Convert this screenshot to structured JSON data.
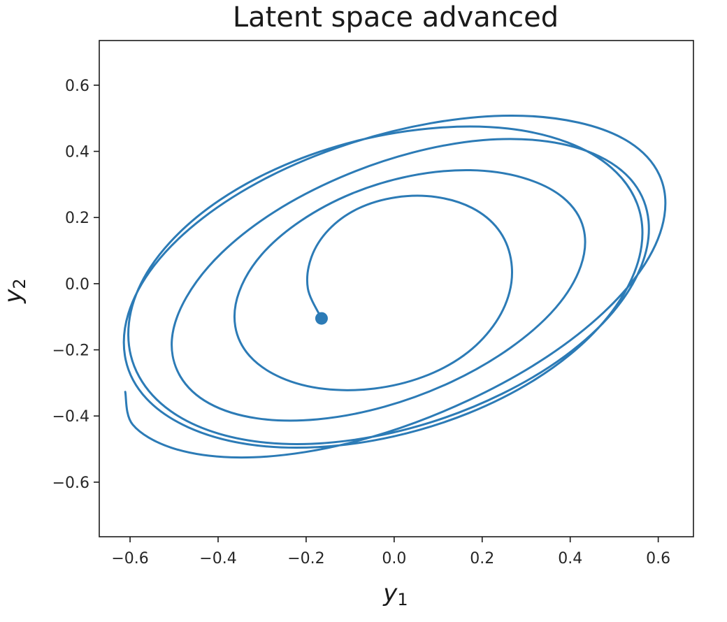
{
  "chart_data": {
    "type": "line",
    "title": "Latent space advanced",
    "xlabel": "y",
    "xlabel_subscript": "1",
    "ylabel": "y",
    "ylabel_subscript": "2",
    "xlim": [
      -0.67,
      0.68
    ],
    "ylim": [
      -0.765,
      0.735
    ],
    "xticks": [
      -0.6,
      -0.4,
      -0.2,
      0.0,
      0.2,
      0.4,
      0.6
    ],
    "xtick_labels": [
      "−0.6",
      "−0.4",
      "−0.2",
      "0.0",
      "0.2",
      "0.4",
      "0.6"
    ],
    "yticks": [
      -0.6,
      -0.4,
      -0.2,
      0.0,
      0.2,
      0.4,
      0.6
    ],
    "ytick_labels": [
      "−0.6",
      "−0.4",
      "−0.2",
      "0.0",
      "0.2",
      "0.4",
      "0.6"
    ],
    "grid": false,
    "line_color": "#2c7bb6",
    "start_marker": {
      "x": -0.165,
      "y": -0.105
    },
    "series": [
      {
        "x": [
          -0.165,
          -0.196,
          -0.188,
          -0.148,
          -0.082,
          0.004,
          0.095,
          0.177,
          0.236,
          0.265,
          0.262,
          0.225,
          0.158,
          0.065,
          -0.045,
          -0.159,
          -0.257,
          -0.328,
          -0.361,
          -0.352,
          -0.301,
          -0.212,
          -0.095,
          0.038,
          0.173,
          0.293,
          0.384,
          0.43,
          0.424,
          0.367,
          0.264,
          0.13,
          -0.022,
          -0.174,
          -0.312,
          -0.42,
          -0.486,
          -0.505,
          -0.472,
          -0.392,
          -0.271,
          -0.121,
          0.041,
          0.202,
          0.348,
          0.466,
          0.545,
          0.578,
          0.562,
          0.497,
          0.388,
          0.245,
          0.081,
          -0.091,
          -0.254,
          -0.397,
          -0.508,
          -0.579,
          -0.604,
          -0.581,
          -0.51,
          -0.396,
          -0.248,
          -0.078,
          0.096,
          0.258,
          0.394,
          0.494,
          0.552,
          0.562,
          0.524,
          0.442,
          0.32,
          0.168,
          -0.002,
          -0.174,
          -0.334,
          -0.468,
          -0.563,
          -0.61,
          -0.604,
          -0.544,
          -0.435,
          -0.285,
          -0.107,
          0.083,
          0.264,
          0.419,
          0.535,
          0.602,
          0.614,
          0.571,
          0.476,
          0.338,
          0.168,
          -0.018,
          -0.202,
          -0.37,
          -0.506,
          -0.594,
          -0.611
        ],
        "y": [
          -0.105,
          -0.015,
          0.08,
          0.164,
          0.227,
          0.261,
          0.262,
          0.229,
          0.165,
          0.076,
          -0.026,
          -0.128,
          -0.217,
          -0.282,
          -0.317,
          -0.318,
          -0.284,
          -0.219,
          -0.129,
          -0.024,
          0.088,
          0.19,
          0.273,
          0.326,
          0.343,
          0.32,
          0.26,
          0.168,
          0.053,
          -0.073,
          -0.194,
          -0.297,
          -0.372,
          -0.41,
          -0.407,
          -0.362,
          -0.28,
          -0.169,
          -0.041,
          0.093,
          0.218,
          0.322,
          0.396,
          0.434,
          0.43,
          0.385,
          0.303,
          0.189,
          0.055,
          -0.086,
          -0.219,
          -0.333,
          -0.42,
          -0.472,
          -0.484,
          -0.454,
          -0.385,
          -0.282,
          -0.156,
          -0.016,
          0.124,
          0.253,
          0.359,
          0.434,
          0.471,
          0.469,
          0.427,
          0.35,
          0.242,
          0.114,
          -0.026,
          -0.164,
          -0.29,
          -0.392,
          -0.462,
          -0.494,
          -0.485,
          -0.434,
          -0.347,
          -0.23,
          -0.091,
          0.057,
          0.198,
          0.323,
          0.421,
          0.485,
          0.508,
          0.487,
          0.427,
          0.33,
          0.205,
          0.062,
          -0.087,
          -0.229,
          -0.353,
          -0.45,
          -0.509,
          -0.525,
          -0.496,
          -0.426,
          -0.327
        ]
      }
    ]
  }
}
